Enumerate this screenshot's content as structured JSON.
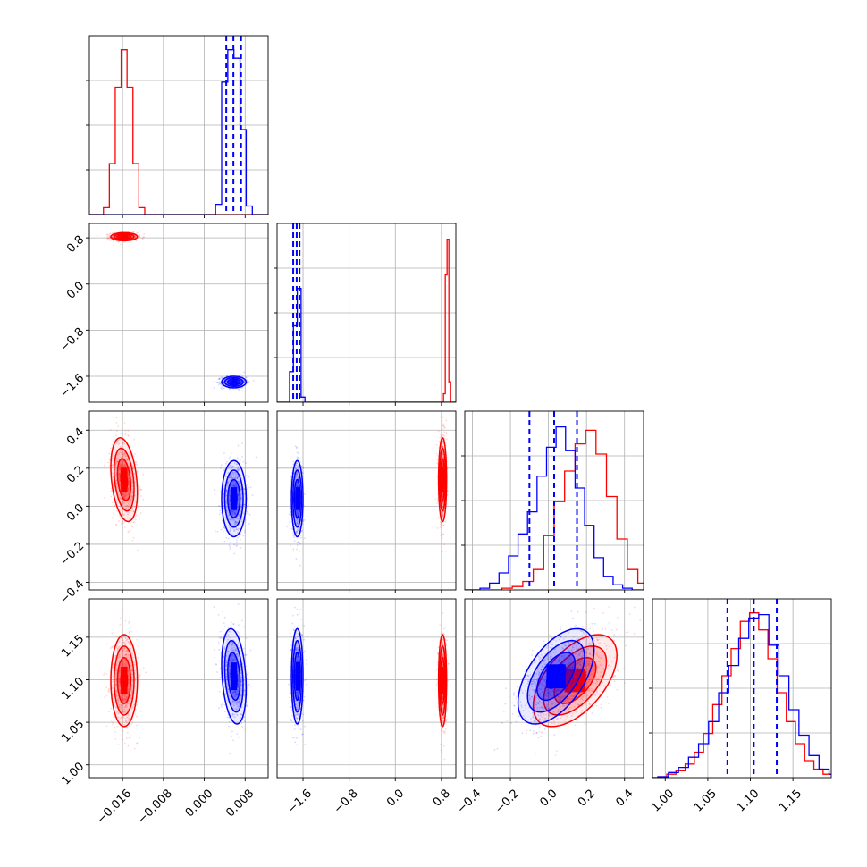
{
  "chart_data": {
    "type": "scatter",
    "title": "",
    "parameters": 4,
    "series": [
      {
        "name": "",
        "color": "#ff0000"
      },
      {
        "name": "",
        "color": "#0000ff"
      }
    ],
    "grid": true,
    "axes": [
      {
        "range": [
          -0.0225,
          0.0125
        ],
        "ticks": [
          -0.016,
          -0.008,
          0.0,
          0.008
        ],
        "tick_labels": [
          "−0.016",
          "−0.008",
          "0.000",
          "0.008"
        ]
      },
      {
        "range": [
          -2.05,
          1.05
        ],
        "ticks": [
          -1.6,
          -0.8,
          0.0,
          0.8
        ],
        "tick_labels": [
          "−1.6",
          "−0.8",
          "0.0",
          "0.8"
        ]
      },
      {
        "range": [
          -0.44,
          0.5
        ],
        "ticks": [
          -0.4,
          -0.2,
          0.0,
          0.2,
          0.4
        ],
        "tick_labels": [
          "−0.4",
          "−0.2",
          "0.0",
          "0.2",
          "0.4"
        ]
      },
      {
        "range": [
          0.985,
          1.195
        ],
        "ticks": [
          1.0,
          1.05,
          1.1,
          1.15
        ],
        "tick_labels": [
          "1.00",
          "1.05",
          "1.10",
          "1.15"
        ]
      }
    ],
    "red": {
      "mean": [
        -0.0157,
        0.82,
        0.14,
        1.099
      ],
      "std": [
        0.0013,
        0.035,
        0.11,
        0.027
      ],
      "correlation": [
        [
          1,
          0,
          -0.3,
          0
        ],
        [
          0,
          1,
          0,
          0
        ],
        [
          -0.3,
          0,
          1,
          0.55
        ],
        [
          0,
          0,
          0.55,
          1
        ]
      ],
      "hist_weights": [
        [
          0.0,
          0.04,
          0.3,
          0.75,
          0.97,
          0.75,
          0.3,
          0.04,
          0.0
        ],
        [
          0.0,
          0.0,
          0.0,
          0.0,
          0.0,
          0.05,
          0.75,
          0.96,
          0.12
        ],
        [
          0.0,
          0.01,
          0.02,
          0.05,
          0.12,
          0.32,
          0.52,
          0.7,
          0.86,
          0.94,
          0.8,
          0.55,
          0.3,
          0.12,
          0.04,
          0.01
        ],
        [
          0.005,
          0.02,
          0.04,
          0.08,
          0.15,
          0.26,
          0.43,
          0.6,
          0.76,
          0.92,
          0.97,
          0.87,
          0.7,
          0.5,
          0.33,
          0.2,
          0.1,
          0.05,
          0.02,
          0.01
        ]
      ]
    },
    "blue": {
      "mean": [
        0.0058,
        -1.7,
        0.04,
        1.104
      ],
      "std": [
        0.0012,
        0.05,
        0.1,
        0.028
      ],
      "correlation": [
        [
          1,
          0,
          0,
          -0.25
        ],
        [
          0,
          1,
          0,
          0
        ],
        [
          0,
          0,
          1,
          0.55
        ],
        [
          -0.25,
          0,
          0.55,
          1
        ]
      ],
      "quantiles": [
        [
          0.0043,
          0.0057,
          0.0072
        ],
        [
          -1.77,
          -1.71,
          -1.66
        ],
        [
          -0.1,
          0.03,
          0.15
        ],
        [
          1.073,
          1.104,
          1.131
        ]
      ],
      "hist_weights": [
        [
          0.0,
          0.06,
          0.78,
          0.97,
          0.92,
          0.5,
          0.05,
          0.0
        ],
        [
          0.0,
          0.18,
          0.45,
          0.67,
          0.03,
          0.0
        ],
        [
          0.01,
          0.04,
          0.1,
          0.2,
          0.33,
          0.46,
          0.67,
          0.84,
          0.96,
          0.82,
          0.6,
          0.38,
          0.19,
          0.08,
          0.03,
          0.01
        ],
        [
          0.005,
          0.03,
          0.06,
          0.12,
          0.2,
          0.33,
          0.5,
          0.66,
          0.82,
          0.94,
          0.96,
          0.78,
          0.6,
          0.4,
          0.25,
          0.13,
          0.05,
          0.02,
          0.01
        ]
      ]
    }
  }
}
